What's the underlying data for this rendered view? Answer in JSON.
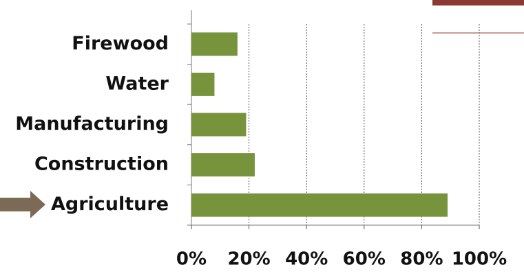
{
  "chart_data": {
    "type": "bar",
    "orientation": "horizontal",
    "categories": [
      "Firewood",
      "Water",
      "Manufacturing",
      "Construction",
      "Agriculture"
    ],
    "values": [
      16,
      8,
      19,
      22,
      89
    ],
    "color": "#77933c",
    "xlim": [
      0,
      100
    ],
    "xticks": [
      {
        "value": 0,
        "label": "0%"
      },
      {
        "value": 20,
        "label": "20%"
      },
      {
        "value": 40,
        "label": "40%"
      },
      {
        "value": 60,
        "label": "60%"
      },
      {
        "value": 80,
        "label": "80%"
      },
      {
        "value": 100,
        "label": "100%"
      }
    ],
    "grid": true
  }
}
